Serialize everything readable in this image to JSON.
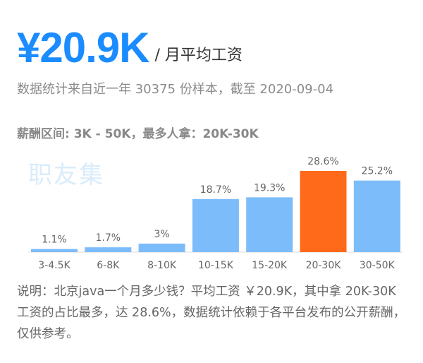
{
  "header": {
    "avg_salary": "¥20.9K",
    "avg_unit": "/ 月平均工资",
    "source": "数据统计来自近一年 30375 份样本，截至 2020-09-04",
    "range": "薪酬区间: 3K - 50K，最多人拿：20K-30K"
  },
  "watermark": "职友集",
  "chart_data": {
    "type": "bar",
    "categories": [
      "3-4.5K",
      "6-8K",
      "8-10K",
      "10-15K",
      "15-20K",
      "20-30K",
      "30-50K"
    ],
    "values": [
      1.1,
      1.7,
      3,
      18.7,
      19.3,
      28.6,
      25.2
    ],
    "value_labels": [
      "1.1%",
      "1.7%",
      "3%",
      "18.7%",
      "19.3%",
      "28.6%",
      "25.2%"
    ],
    "highlight_index": 5,
    "colors": {
      "normal": "#7dbcfa",
      "highlight": "#ff6a1a",
      "baseline": "#dddddd"
    },
    "ylim": [
      0,
      28.6
    ],
    "grid": false,
    "legend": "none"
  },
  "note": "说明：北京java一个月多少钱？平均工资 ￥20.9K，其中拿 20K-30K 工资的占比最多，达 28.6%，数据统计依赖于各平台发布的公开薪酬，仅供参考。"
}
